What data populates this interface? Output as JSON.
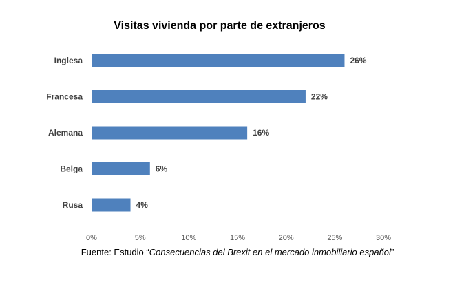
{
  "chart_data": {
    "type": "bar",
    "orientation": "horizontal",
    "title": "Visitas vivienda por parte de extranjeros",
    "categories": [
      "Inglesa",
      "Francesa",
      "Alemana",
      "Belga",
      "Rusa"
    ],
    "values": [
      26,
      22,
      16,
      6,
      4
    ],
    "value_labels": [
      "26%",
      "22%",
      "16%",
      "6%",
      "4%"
    ],
    "xlim": [
      0,
      30
    ],
    "xticks": [
      0,
      5,
      10,
      15,
      20,
      25,
      30
    ],
    "xtick_labels": [
      "0%",
      "5%",
      "10%",
      "15%",
      "20%",
      "25%",
      "30%"
    ],
    "xlabel": "",
    "ylabel": "",
    "grid": false,
    "legend": "none",
    "bar_color": "#4F81BD"
  },
  "source": {
    "prefix": "Fuente: Estudio ",
    "open_quote": "“",
    "title": "Consecuencias del Brexit en el mercado inmobiliario español",
    "close_quote": "”"
  }
}
